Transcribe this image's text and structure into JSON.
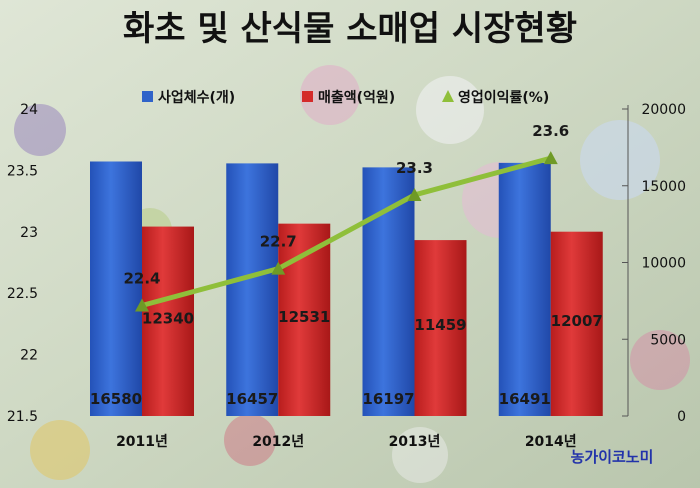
{
  "chart_data": {
    "type": "bar",
    "title": "화초 및 산식물 소매업 시장현황",
    "categories": [
      "2011년",
      "2012년",
      "2013년",
      "2014년"
    ],
    "series": [
      {
        "name": "사업체수(개)",
        "type": "bar",
        "axis": "right",
        "color": "#2f63c9",
        "values": [
          16580,
          16457,
          16197,
          16491
        ]
      },
      {
        "name": "매출액(억원)",
        "type": "bar",
        "axis": "right",
        "color": "#d42a2a",
        "values": [
          12340,
          12531,
          11459,
          12007
        ]
      },
      {
        "name": "영업이익률(%)",
        "type": "line",
        "axis": "left",
        "color": "#8fbf3a",
        "values": [
          22.4,
          22.7,
          23.3,
          23.6
        ]
      }
    ],
    "left_axis": {
      "ylim": [
        21.5,
        24
      ],
      "ticks": [
        "21.5",
        "22",
        "22.5",
        "23",
        "23.5",
        "24"
      ]
    },
    "right_axis": {
      "ylim": [
        0,
        20000
      ],
      "ticks": [
        "0",
        "5000",
        "10000",
        "15000",
        "20000"
      ]
    },
    "legend": "top",
    "grid": false
  },
  "watermark": "농가이코노미"
}
